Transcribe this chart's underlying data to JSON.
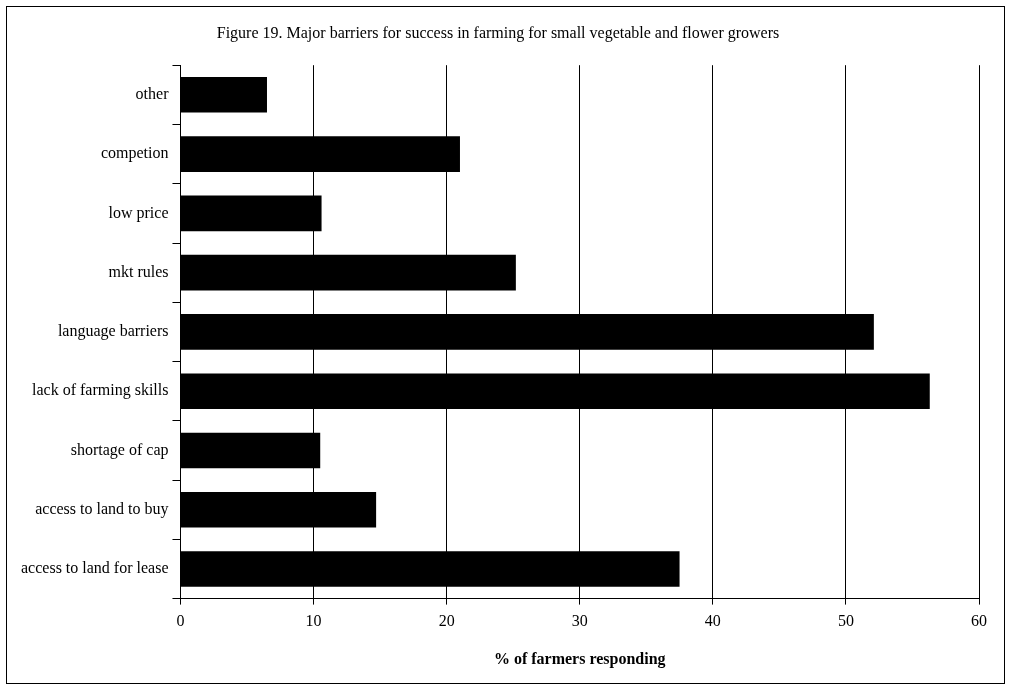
{
  "chart_data": {
    "type": "bar",
    "orientation": "horizontal",
    "title": "Figure 19. Major barriers for success in farming for small vegetable and flower growers",
    "xlabel": "% of farmers responding",
    "categories": [
      "other",
      "competion",
      "low price",
      "mkt rules",
      "language barriers",
      "lack of farming skills",
      "shortage of cap",
      "access to land to buy",
      "access to land for lease"
    ],
    "values": [
      6.5,
      21.0,
      10.6,
      25.2,
      52.1,
      56.3,
      10.5,
      14.7,
      37.5
    ],
    "color": "#000000",
    "xlim": [
      0,
      60
    ],
    "xticks": [
      0,
      10,
      20,
      30,
      40,
      50,
      60
    ],
    "grid": "x",
    "legend": false
  }
}
